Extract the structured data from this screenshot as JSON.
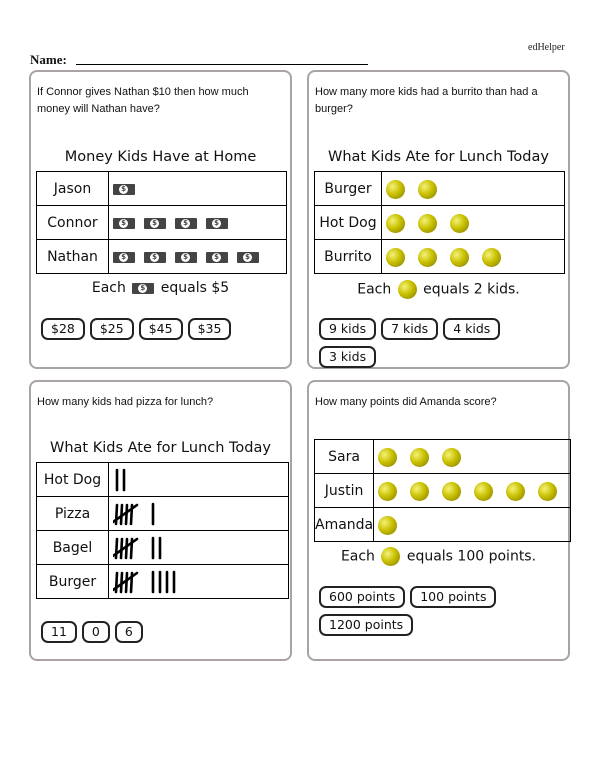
{
  "header": {
    "brand": "edHelper",
    "name_label": "Name:"
  },
  "colors": {
    "panel_border": "#a9a3a6",
    "coin": "#c9c000"
  },
  "problems": [
    {
      "question": "If Connor gives Nathan $10 then how much money will Nathan have?",
      "title": "Money Kids Have at Home",
      "symbol": "dollar-bill-icon",
      "rows": [
        {
          "label": "Jason",
          "count": 1
        },
        {
          "label": "Connor",
          "count": 4
        },
        {
          "label": "Nathan",
          "count": 5
        }
      ],
      "key": {
        "prefix": "Each",
        "suffix": "equals $5"
      },
      "answers": [
        "$28",
        "$25",
        "$45",
        "$35"
      ]
    },
    {
      "question": "How many more kids had a burrito than had a burger?",
      "title": "What Kids Ate for Lunch Today",
      "symbol": "coin-icon",
      "rows": [
        {
          "label": "Burger",
          "count": 2
        },
        {
          "label": "Hot Dog",
          "count": 3
        },
        {
          "label": "Burrito",
          "count": 4
        }
      ],
      "key": {
        "prefix": "Each",
        "suffix": "equals 2 kids."
      },
      "answers": [
        "9 kids",
        "7 kids",
        "4 kids",
        "3 kids"
      ]
    },
    {
      "question": "How many kids had pizza for lunch?",
      "title": "What Kids Ate for Lunch Today",
      "symbol": "tally-marks",
      "rows": [
        {
          "label": "Hot Dog",
          "count": 2
        },
        {
          "label": "Pizza",
          "count": 6
        },
        {
          "label": "Bagel",
          "count": 7
        },
        {
          "label": "Burger",
          "count": 9
        }
      ],
      "answers": [
        "11",
        "0",
        "6"
      ]
    },
    {
      "question": "How many points did Amanda score?",
      "title": "",
      "symbol": "coin-icon",
      "rows": [
        {
          "label": "Sara",
          "count": 3
        },
        {
          "label": "Justin",
          "count": 6
        },
        {
          "label": "Amanda",
          "count": 1
        }
      ],
      "key": {
        "prefix": "Each",
        "suffix": "equals 100 points."
      },
      "answers": [
        "600 points",
        "100 points",
        "1200 points"
      ]
    }
  ]
}
